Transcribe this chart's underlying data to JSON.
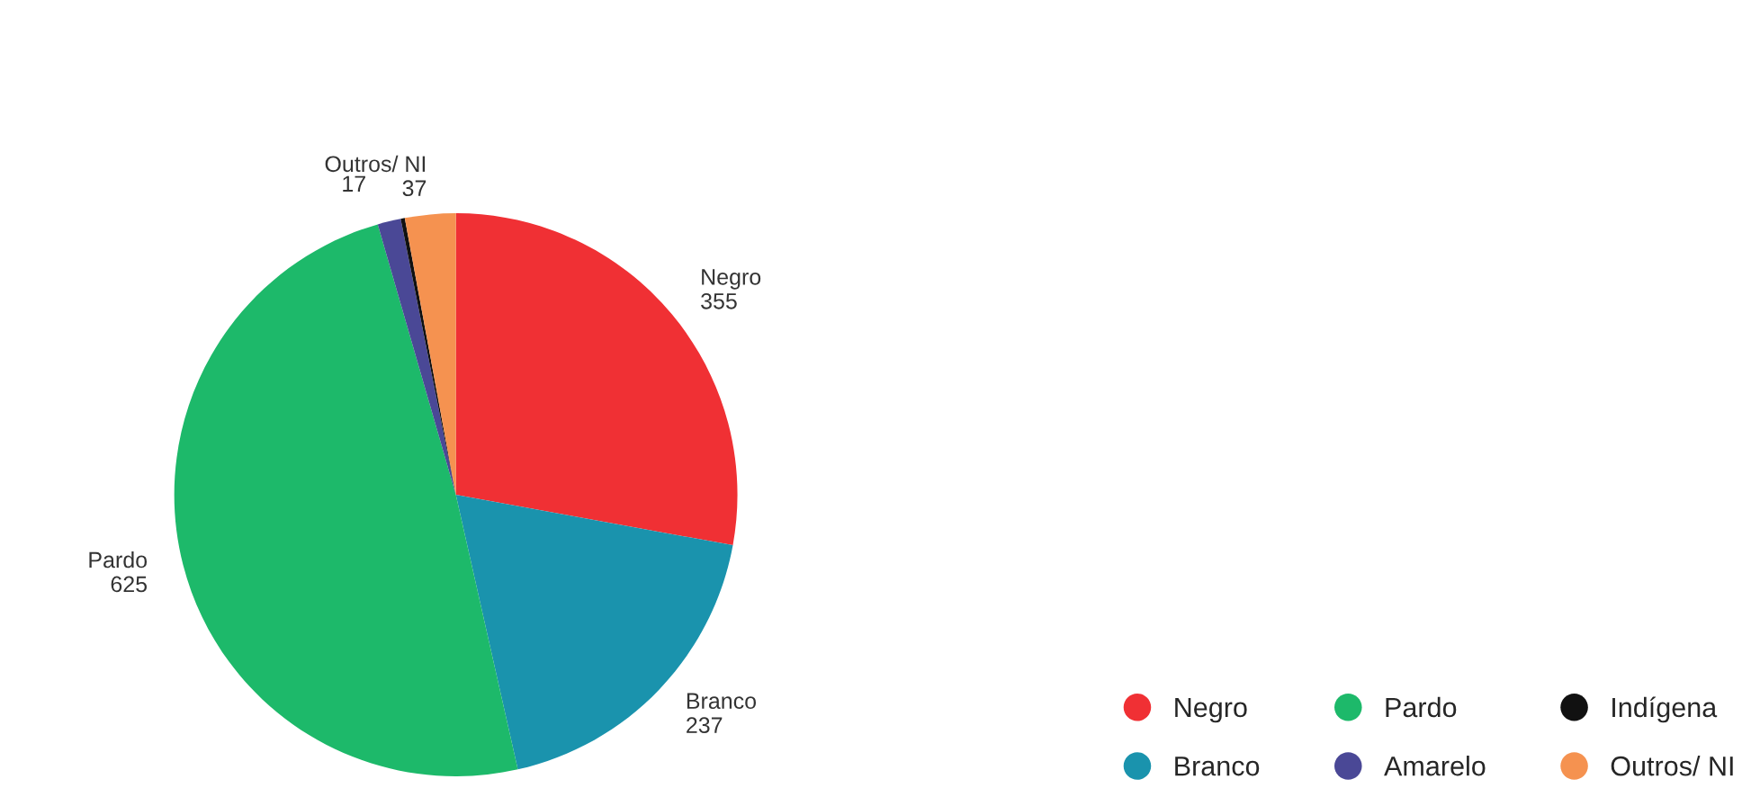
{
  "chart_data": {
    "type": "pie",
    "categories": [
      "Negro",
      "Branco",
      "Pardo",
      "Amarelo",
      "Indígena",
      "Outros/ NI"
    ],
    "values": [
      355,
      237,
      625,
      17,
      3,
      37
    ],
    "value_labels": [
      "355",
      "237",
      "625",
      "17",
      null,
      "37"
    ],
    "colors": [
      "#f03034",
      "#1a93ad",
      "#1db96a",
      "#4a4896",
      "#111111",
      "#f59250"
    ],
    "annotations": [
      {
        "text": "Negro",
        "x": "Negro"
      },
      {
        "text": "Branco",
        "x": "Branco"
      },
      {
        "text": "Pardo",
        "x": "Pardo"
      },
      {
        "text": "Outros/ NI",
        "x": "Outros/ NI"
      }
    ],
    "legend": "bottom right"
  }
}
